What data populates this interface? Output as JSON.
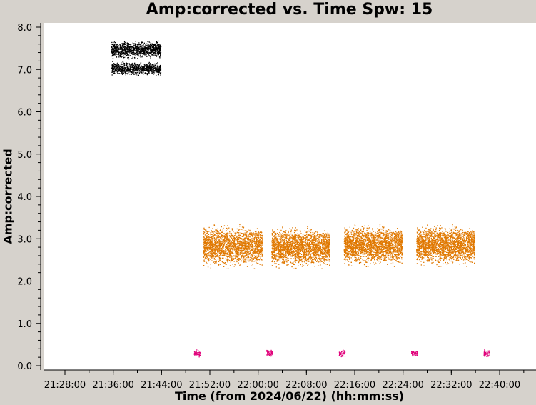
{
  "chart_data": {
    "type": "scatter",
    "title": "Amp:corrected vs. Time Spw: 15",
    "xlabel": "Time (from 2024/06/22) (hh:mm:ss)",
    "ylabel": "Amp:corrected",
    "xlim": [
      "21:24:00",
      "22:44:00"
    ],
    "ylim": [
      0.0,
      8.0
    ],
    "xticks": [
      "21:28:00",
      "21:36:00",
      "21:44:00",
      "21:52:00",
      "22:00:00",
      "22:08:00",
      "22:16:00",
      "22:24:00",
      "22:32:00",
      "22:40:00"
    ],
    "yticks": [
      "0.0",
      "1.0",
      "2.0",
      "3.0",
      "4.0",
      "5.0",
      "6.0",
      "7.0",
      "8.0"
    ],
    "grid": false,
    "series": [
      {
        "color": "#000000",
        "clusters": [
          {
            "t_start": "21:35:40",
            "t_end": "21:43:50",
            "y_min": 7.25,
            "y_max": 7.7
          },
          {
            "t_start": "21:35:40",
            "t_end": "21:43:50",
            "y_min": 6.85,
            "y_max": 7.2
          }
        ]
      },
      {
        "color": "#e07800",
        "clusters": [
          {
            "t_start": "21:50:50",
            "t_end": "22:00:40",
            "y_min": 2.3,
            "y_max": 3.35
          },
          {
            "t_start": "22:02:10",
            "t_end": "22:11:50",
            "y_min": 2.3,
            "y_max": 3.3
          },
          {
            "t_start": "22:14:10",
            "t_end": "22:23:50",
            "y_min": 2.35,
            "y_max": 3.35
          },
          {
            "t_start": "22:26:10",
            "t_end": "22:35:50",
            "y_min": 2.35,
            "y_max": 3.35
          }
        ]
      },
      {
        "color": "#e0007a",
        "clusters": [
          {
            "t_start": "21:49:20",
            "t_end": "21:50:20",
            "y_min": 0.2,
            "y_max": 0.4
          },
          {
            "t_start": "22:01:20",
            "t_end": "22:02:20",
            "y_min": 0.2,
            "y_max": 0.4
          },
          {
            "t_start": "22:13:20",
            "t_end": "22:14:20",
            "y_min": 0.2,
            "y_max": 0.4
          },
          {
            "t_start": "22:25:20",
            "t_end": "22:26:20",
            "y_min": 0.2,
            "y_max": 0.4
          },
          {
            "t_start": "22:37:20",
            "t_end": "22:38:20",
            "y_min": 0.2,
            "y_max": 0.4
          }
        ]
      }
    ]
  }
}
